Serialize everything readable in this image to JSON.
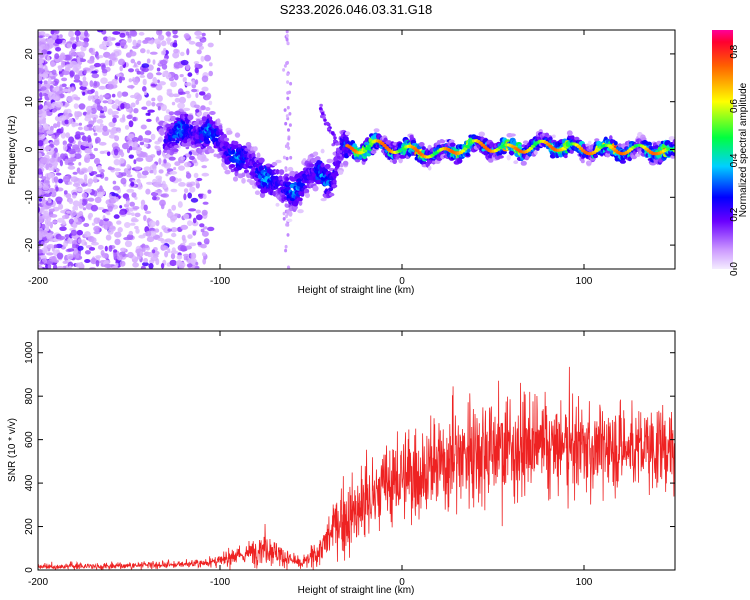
{
  "title": "S233.2026.046.03.31.G18",
  "chart_data": [
    {
      "type": "heatmap",
      "name": "spectrogram",
      "xlabel": "Height of straight line (km)",
      "ylabel": "Frequency (Hz)",
      "xlim": [
        -200,
        150
      ],
      "ylim": [
        -25,
        25
      ],
      "xticks": [
        -200,
        -100,
        0,
        100
      ],
      "yticks": [
        -20,
        -10,
        0,
        10,
        20
      ],
      "ridge": {
        "description": "dominant frequency track vs height",
        "x": [
          -125,
          -115,
          -105,
          -95,
          -85,
          -75,
          -65,
          -55,
          -45,
          -38,
          -33,
          -25,
          -15,
          0,
          20,
          40,
          60,
          80,
          100,
          120,
          140,
          150
        ],
        "y": [
          3,
          4,
          3,
          0,
          -3,
          -5,
          -9,
          -7,
          -5,
          -6,
          0,
          0,
          1,
          0,
          -1,
          1,
          0,
          1,
          0,
          0,
          0,
          -1
        ]
      },
      "colorbar": {
        "label": "Normalized spectral amplitude",
        "range": [
          0.0,
          0.8
        ],
        "ticks": [
          "0.0",
          "0.2",
          "0.4",
          "0.6",
          "0.8"
        ],
        "colors": [
          "#ffffff",
          "#cc99ff",
          "#6600ff",
          "#0000ff",
          "#00ffff",
          "#00ff00",
          "#ffff00",
          "#ff7f00",
          "#ff0000",
          "#ff0099"
        ]
      }
    },
    {
      "type": "line",
      "name": "snr",
      "xlabel": "Height of straight line (km)",
      "ylabel": "SNR (10 * v/v)",
      "xlim": [
        -200,
        150
      ],
      "ylim": [
        0,
        1100
      ],
      "xticks": [
        -200,
        -100,
        0,
        100
      ],
      "yticks": [
        0,
        200,
        400,
        600,
        800,
        1000
      ],
      "color": "#ee2222",
      "envelope": {
        "x": [
          -200,
          -150,
          -120,
          -100,
          -90,
          -80,
          -75,
          -65,
          -55,
          -45,
          -35,
          -25,
          -20,
          -10,
          0,
          10,
          20,
          30,
          40,
          60,
          80,
          100,
          120,
          150
        ],
        "mean": [
          15,
          20,
          25,
          40,
          60,
          90,
          110,
          60,
          25,
          90,
          220,
          260,
          300,
          380,
          420,
          450,
          480,
          520,
          560,
          560,
          560,
          560,
          560,
          560
        ],
        "spread": [
          15,
          20,
          20,
          35,
          50,
          80,
          110,
          55,
          25,
          90,
          180,
          240,
          260,
          240,
          260,
          280,
          300,
          300,
          330,
          300,
          280,
          260,
          250,
          250
        ]
      }
    }
  ]
}
